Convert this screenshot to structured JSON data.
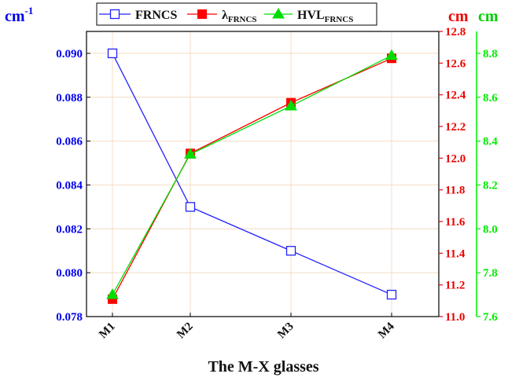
{
  "chart_data": {
    "type": "line",
    "xlabel": "The M-X glasses",
    "categories": [
      "M1",
      "M2",
      "M3",
      "M4"
    ],
    "axes": {
      "left": {
        "unit": "cm",
        "unit_sup": "-1",
        "range": [
          0.078,
          0.091
        ],
        "ticks": [
          "0.078",
          "0.080",
          "0.082",
          "0.084",
          "0.086",
          "0.088",
          "0.090"
        ],
        "color": "#0000ee"
      },
      "right1": {
        "unit": "cm",
        "range": [
          11.0,
          12.8
        ],
        "ticks": [
          "11.0",
          "11.2",
          "11.4",
          "11.6",
          "11.8",
          "12.0",
          "12.2",
          "12.4",
          "12.6",
          "12.8"
        ],
        "color": "#ee0000"
      },
      "right2": {
        "unit": "cm",
        "range": [
          7.6,
          8.9
        ],
        "ticks": [
          "7.6",
          "7.8",
          "8.0",
          "8.2",
          "8.4",
          "8.6",
          "8.8"
        ],
        "color": "#00ee00"
      }
    },
    "series": [
      {
        "name": "FRNCS",
        "axis": "left",
        "values": [
          0.09,
          0.083,
          0.081,
          0.079
        ],
        "color": "#2222ff",
        "marker": "open-square"
      },
      {
        "name": "λ",
        "name_sub": "FRNCS",
        "axis": "right1",
        "values": [
          11.11,
          12.03,
          12.35,
          12.63
        ],
        "color": "#ff0000",
        "marker": "filled-square"
      },
      {
        "name": "HVL",
        "name_sub": "FRNCS",
        "axis": "right2",
        "values": [
          7.7,
          8.34,
          8.56,
          8.79
        ],
        "color": "#00dd00",
        "marker": "filled-triangle"
      }
    ],
    "grid": true,
    "legend_position": "top"
  }
}
